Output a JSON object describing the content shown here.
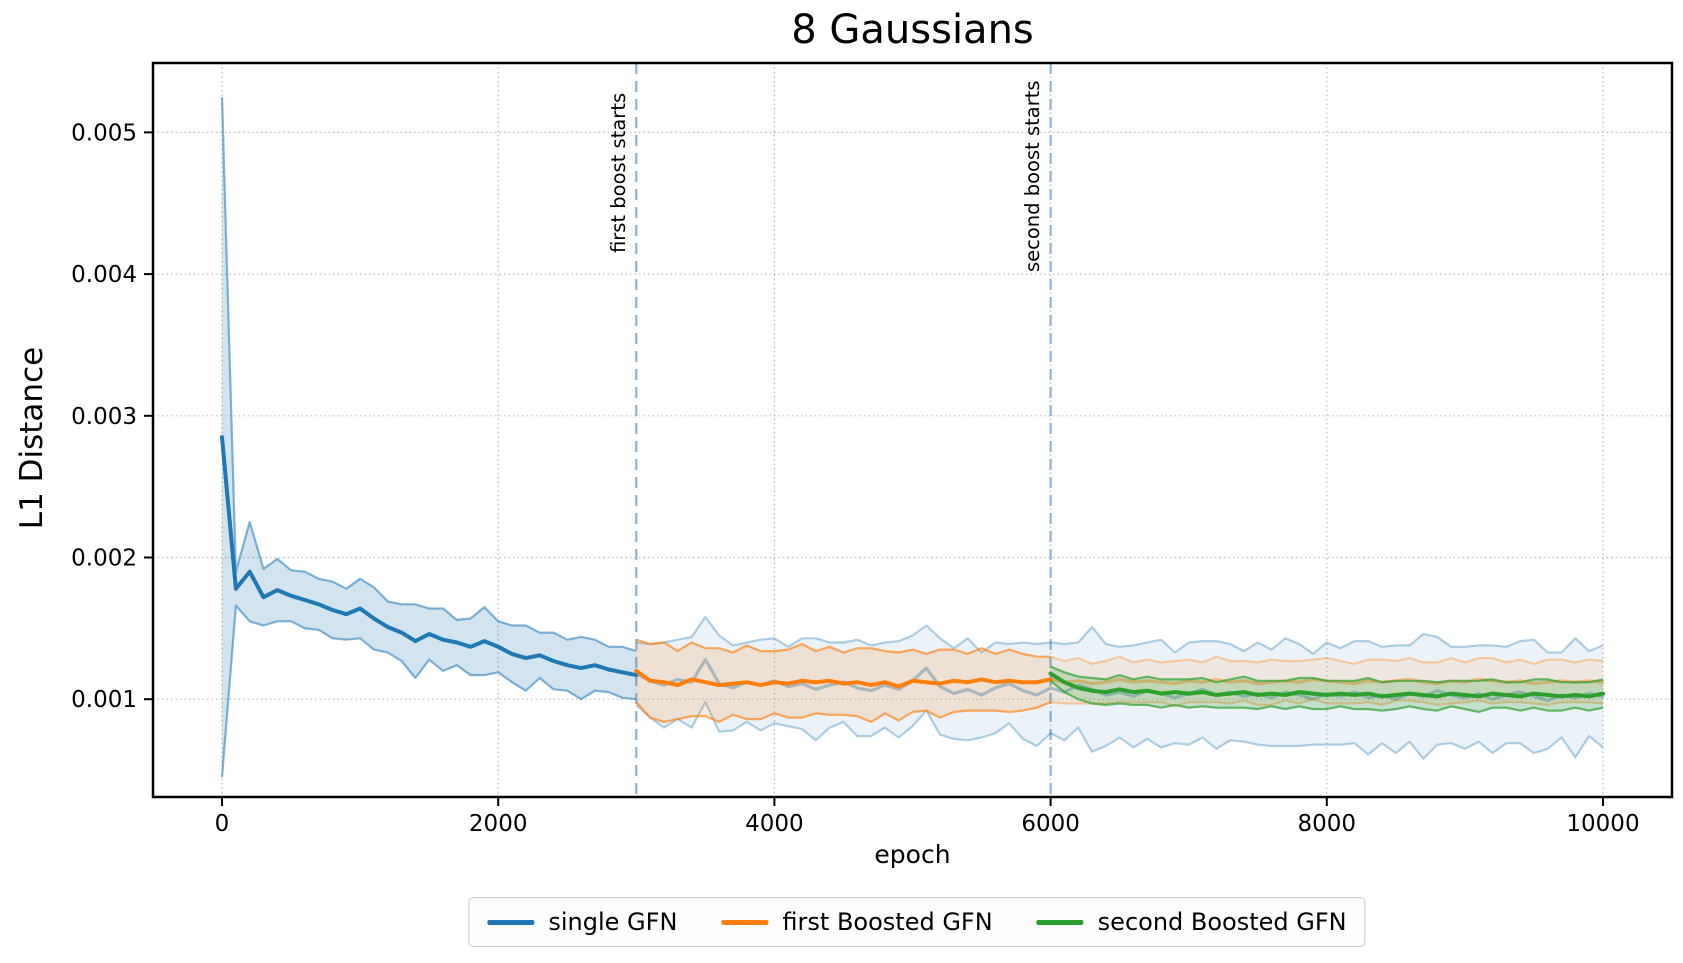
{
  "chart_data": {
    "type": "line",
    "title": "8 Gaussians",
    "xlabel": "epoch",
    "ylabel": "L1 Distance",
    "xlim": [
      -500,
      10500
    ],
    "ylim": [
      0.00031,
      0.00549
    ],
    "xticks": [
      0,
      2000,
      4000,
      6000,
      8000,
      10000
    ],
    "yticks": [
      0.001,
      0.002,
      0.003,
      0.004,
      0.005
    ],
    "ytick_labels": [
      "0.001",
      "0.002",
      "0.003",
      "0.004",
      "0.005"
    ],
    "grid": "dotted",
    "grid_color": "#bbbbbb",
    "vlines": [
      {
        "x": 3000,
        "label": "first boost starts",
        "color": "#8ab3d8",
        "style": "dashed"
      },
      {
        "x": 6000,
        "label": "second boost starts",
        "color": "#8ab3d8",
        "style": "dashed"
      }
    ],
    "series": [
      {
        "key": "single-gfn",
        "name": "single GFN",
        "color": "#1f77b4",
        "x0": 0,
        "dx": 100,
        "lw": 4,
        "line_alpha": 1.0,
        "edge_alpha": 0.55,
        "fill_alpha": 0.2,
        "mean": [
          0.00285,
          0.00178,
          0.0019,
          0.00172,
          0.00177,
          0.00173,
          0.0017,
          0.00167,
          0.00163,
          0.0016,
          0.00164,
          0.00157,
          0.00151,
          0.00147,
          0.00141,
          0.00146,
          0.00142,
          0.0014,
          0.00137,
          0.00141,
          0.00137,
          0.00132,
          0.00129,
          0.00131,
          0.00127,
          0.00124,
          0.00122,
          0.00124,
          0.00121,
          0.00119,
          0.00117
        ],
        "spread": [
          0.0024,
          0.00012,
          0.00035,
          0.0002,
          0.00022,
          0.00018,
          0.0002,
          0.00018,
          0.0002,
          0.00018,
          0.00021,
          0.00022,
          0.00018,
          0.0002,
          0.00026,
          0.00018,
          0.00022,
          0.00016,
          0.0002,
          0.00024,
          0.00018,
          0.0002,
          0.00023,
          0.00016,
          0.0002,
          0.00018,
          0.00022,
          0.00018,
          0.00016,
          0.00018,
          0.00017
        ]
      },
      {
        "key": "single-gfn-continued",
        "name": "single GFN (after boosting, faded)",
        "color": "#1f77b4",
        "x0": 3000,
        "dx": 100,
        "lw": 3.2,
        "line_alpha": 0.4,
        "edge_alpha": 0.35,
        "fill_alpha": 0.09,
        "mean": [
          0.00118,
          0.00113,
          0.0011,
          0.00114,
          0.00112,
          0.00128,
          0.00111,
          0.00108,
          0.00112,
          0.0011,
          0.00113,
          0.00109,
          0.00111,
          0.00107,
          0.0011,
          0.00112,
          0.00108,
          0.00106,
          0.0011,
          0.00107,
          0.00113,
          0.00122,
          0.00109,
          0.00104,
          0.00107,
          0.00103,
          0.00108,
          0.00111,
          0.00106,
          0.00103,
          0.00108,
          0.00105,
          0.0011,
          0.00107,
          0.00103,
          0.00105,
          0.00102,
          0.00106,
          0.00104,
          0.00101,
          0.00104,
          0.00107,
          0.00103,
          0.00105,
          0.00102,
          0.00104,
          0.00101,
          0.00105,
          0.00103,
          0.001,
          0.00104,
          0.00102,
          0.00105,
          0.00101,
          0.00103,
          0.001,
          0.00104,
          0.00102,
          0.00106,
          0.00103,
          0.00101,
          0.00104,
          0.001,
          0.00103,
          0.00105,
          0.00102,
          0.00099,
          0.00103,
          0.00101,
          0.00104,
          0.00102
        ],
        "spread": [
          0.00022,
          0.00026,
          0.0003,
          0.00028,
          0.00032,
          0.0003,
          0.00034,
          0.0003,
          0.00028,
          0.00032,
          0.0003,
          0.00028,
          0.00032,
          0.00036,
          0.0003,
          0.00028,
          0.00034,
          0.00032,
          0.0003,
          0.00034,
          0.00032,
          0.0003,
          0.00034,
          0.00032,
          0.00036,
          0.0003,
          0.00032,
          0.00028,
          0.00034,
          0.00036,
          0.00032,
          0.00034,
          0.0003,
          0.00044,
          0.00036,
          0.00032,
          0.00036,
          0.00034,
          0.00038,
          0.00032,
          0.00036,
          0.00034,
          0.00038,
          0.00034,
          0.00032,
          0.00036,
          0.00034,
          0.00038,
          0.00036,
          0.00032,
          0.00036,
          0.00034,
          0.00036,
          0.0004,
          0.00034,
          0.00038,
          0.00034,
          0.00044,
          0.00038,
          0.00034,
          0.00036,
          0.00034,
          0.00038,
          0.00034,
          0.00036,
          0.0004,
          0.00034,
          0.0003,
          0.00042,
          0.0003,
          0.00036
        ]
      },
      {
        "key": "first-boosted-gfn",
        "name": "first Boosted GFN",
        "color": "#ff7f0e",
        "x0": 3000,
        "dx": 100,
        "lw": 4,
        "line_alpha": 1.0,
        "edge_alpha": 0.65,
        "fill_alpha": 0.16,
        "mean": [
          0.0012,
          0.00113,
          0.00112,
          0.0011,
          0.00114,
          0.00112,
          0.0011,
          0.00111,
          0.00112,
          0.0011,
          0.00112,
          0.00111,
          0.00113,
          0.00112,
          0.00113,
          0.00111,
          0.00112,
          0.0011,
          0.00112,
          0.00109,
          0.00113,
          0.00112,
          0.00111,
          0.00113,
          0.00112,
          0.00114,
          0.00112,
          0.00113,
          0.00112,
          0.00112,
          0.00114
        ],
        "spread": [
          0.00022,
          0.00026,
          0.00028,
          0.00024,
          0.00026,
          0.00024,
          0.00026,
          0.00022,
          0.00026,
          0.00024,
          0.00022,
          0.00024,
          0.00026,
          0.00022,
          0.00024,
          0.00022,
          0.00024,
          0.00026,
          0.00022,
          0.00024,
          0.00022,
          0.0002,
          0.00024,
          0.00022,
          0.0002,
          0.00022,
          0.0002,
          0.00022,
          0.0002,
          0.00018,
          0.00016
        ]
      },
      {
        "key": "first-boosted-gfn-continued",
        "name": "first Boosted GFN (after boosting, faded)",
        "color": "#ff7f0e",
        "x0": 6000,
        "dx": 100,
        "lw": 3.2,
        "line_alpha": 0.45,
        "edge_alpha": 0.35,
        "fill_alpha": 0.1,
        "mean": [
          0.00114,
          0.00112,
          0.00113,
          0.00111,
          0.00112,
          0.00114,
          0.00112,
          0.00113,
          0.00112,
          0.00111,
          0.00113,
          0.00112,
          0.00114,
          0.00112,
          0.00113,
          0.00111,
          0.00112,
          0.00113,
          0.00112,
          0.00114,
          0.00113,
          0.00112,
          0.00111,
          0.00113,
          0.00112,
          0.00113,
          0.00114,
          0.00112,
          0.00111,
          0.00113,
          0.00112,
          0.00114,
          0.00113,
          0.00112,
          0.00113,
          0.00111,
          0.00112,
          0.00113,
          0.00112,
          0.00113,
          0.00112
        ],
        "spread": [
          0.00016,
          0.00015,
          0.00016,
          0.00014,
          0.00015,
          0.00016,
          0.00014,
          0.00015,
          0.00014,
          0.00016,
          0.00015,
          0.00014,
          0.00016,
          0.00015,
          0.00014,
          0.00015,
          0.00016,
          0.00014,
          0.00015,
          0.00014,
          0.00016,
          0.00015,
          0.00014,
          0.00015,
          0.00016,
          0.00014,
          0.00015,
          0.00014,
          0.00015,
          0.00016,
          0.00014,
          0.00015,
          0.00016,
          0.00014,
          0.00015,
          0.00014,
          0.00016,
          0.00015,
          0.00014,
          0.00015,
          0.00015
        ]
      },
      {
        "key": "second-boosted-gfn",
        "name": "second Boosted GFN",
        "color": "#2ca02c",
        "x0": 6000,
        "dx": 100,
        "lw": 4,
        "line_alpha": 1.0,
        "edge_alpha": 0.7,
        "fill_alpha": 0.22,
        "mean": [
          0.00118,
          0.00112,
          0.00108,
          0.00106,
          0.00105,
          0.00107,
          0.00105,
          0.00106,
          0.00104,
          0.00105,
          0.00104,
          0.00105,
          0.00103,
          0.00104,
          0.00105,
          0.00103,
          0.00104,
          0.00103,
          0.00105,
          0.00104,
          0.00103,
          0.00104,
          0.00103,
          0.00104,
          0.00102,
          0.00103,
          0.00104,
          0.00103,
          0.00102,
          0.00104,
          0.00103,
          0.00102,
          0.00104,
          0.00103,
          0.00102,
          0.00104,
          0.00103,
          0.00102,
          0.00103,
          0.00102,
          0.00104
        ],
        "spread": [
          5e-05,
          7e-05,
          8e-05,
          9e-05,
          9e-05,
          0.0001,
          9e-05,
          0.0001,
          0.0001,
          9e-05,
          0.0001,
          0.0001,
          9e-05,
          0.0001,
          0.00011,
          0.0001,
          9e-05,
          0.0001,
          0.0001,
          0.00011,
          0.0001,
          9e-05,
          0.0001,
          0.00011,
          0.0001,
          0.0001,
          9e-05,
          0.0001,
          0.0001,
          9e-05,
          0.0001,
          0.00011,
          0.0001,
          9e-05,
          0.0001,
          0.0001,
          0.00011,
          0.0001,
          9e-05,
          0.0001,
          0.0001
        ]
      }
    ],
    "legend": {
      "position": "bottom-center",
      "items": [
        {
          "label": "single GFN",
          "color": "#1f77b4"
        },
        {
          "label": "first Boosted GFN",
          "color": "#ff7f0e"
        },
        {
          "label": "second Boosted GFN",
          "color": "#2ca02c"
        }
      ]
    }
  }
}
